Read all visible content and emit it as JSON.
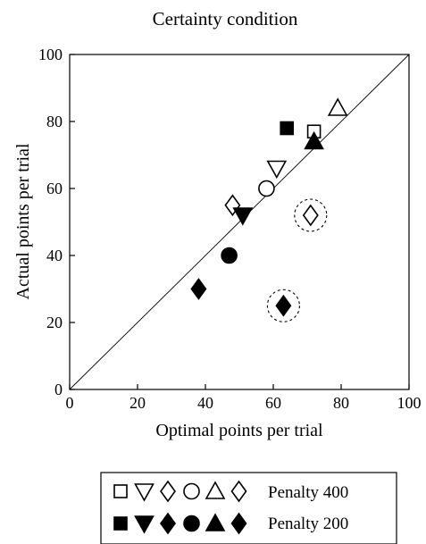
{
  "chart_data": {
    "type": "scatter",
    "title": "Certainty condition",
    "xlabel": "Optimal points per trial",
    "ylabel": "Actual points per trial",
    "xlim": [
      0,
      100
    ],
    "ylim": [
      0,
      100
    ],
    "xticks": [
      "0",
      "20",
      "40",
      "60",
      "80",
      "100"
    ],
    "yticks": [
      "0",
      "20",
      "40",
      "60",
      "80",
      "100"
    ],
    "grid": false,
    "reference_line": "y = x",
    "series": [
      {
        "name": "Penalty 400",
        "filled": false,
        "points": [
          {
            "x": 72,
            "y": 77,
            "marker": "square"
          },
          {
            "x": 61,
            "y": 66,
            "marker": "triangle-down"
          },
          {
            "x": 71,
            "y": 52,
            "marker": "diamond",
            "circled": true
          },
          {
            "x": 58,
            "y": 60,
            "marker": "circle"
          },
          {
            "x": 79,
            "y": 84,
            "marker": "triangle-up"
          },
          {
            "x": 48,
            "y": 55,
            "marker": "diamond"
          }
        ]
      },
      {
        "name": "Penalty 200",
        "filled": true,
        "points": [
          {
            "x": 64,
            "y": 78,
            "marker": "square"
          },
          {
            "x": 51,
            "y": 52,
            "marker": "triangle-down"
          },
          {
            "x": 38,
            "y": 30,
            "marker": "diamond"
          },
          {
            "x": 47,
            "y": 40,
            "marker": "circle"
          },
          {
            "x": 72,
            "y": 74,
            "marker": "triangle-up"
          },
          {
            "x": 63,
            "y": 25,
            "marker": "diamond",
            "circled": true
          }
        ]
      }
    ],
    "legend": {
      "placement": "bottom",
      "marker_order": [
        "square",
        "triangle-down",
        "diamond",
        "circle",
        "triangle-up",
        "diamond"
      ]
    }
  }
}
